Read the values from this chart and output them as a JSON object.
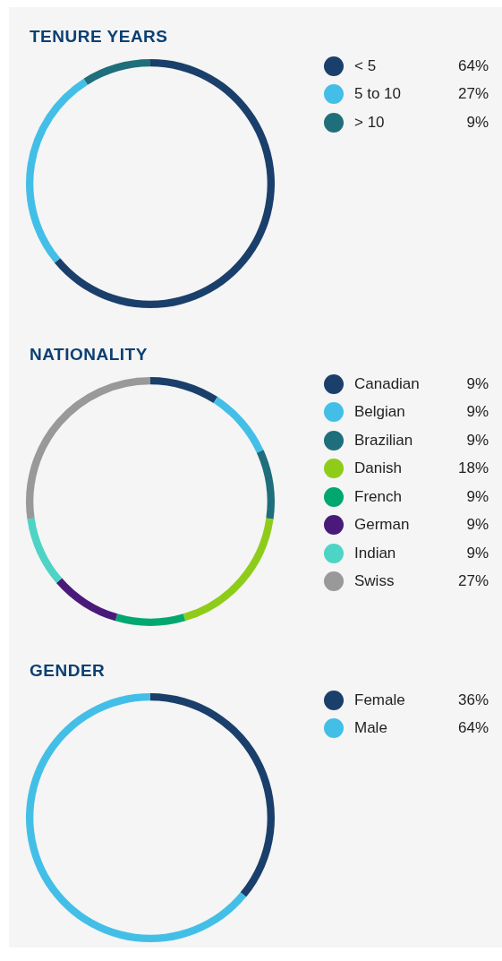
{
  "chart_data": [
    {
      "type": "donut",
      "title": "TENURE YEARS",
      "categories": [
        "< 5",
        "5 to 10",
        "> 10"
      ],
      "values": [
        64,
        27,
        9
      ],
      "value_labels": [
        "64%",
        "27%",
        "9%"
      ],
      "colors": [
        "#1b3f6b",
        "#43bfe7",
        "#1f6e7b"
      ],
      "legend": "right"
    },
    {
      "type": "donut",
      "title": "NATIONALITY",
      "categories": [
        "Canadian",
        "Belgian",
        "Brazilian",
        "Danish",
        "French",
        "German",
        "Indian",
        "Swiss"
      ],
      "values": [
        9,
        9,
        9,
        18,
        9,
        9,
        9,
        27
      ],
      "value_labels": [
        "9%",
        "9%",
        "9%",
        "18%",
        "9%",
        "9%",
        "9%",
        "27%"
      ],
      "colors": [
        "#1b3f6b",
        "#43bfe7",
        "#1f6e7b",
        "#8fcc1a",
        "#00a870",
        "#4a1a7a",
        "#4dd4c4",
        "#999999"
      ],
      "legend": "right"
    },
    {
      "type": "donut",
      "title": "GENDER",
      "categories": [
        "Female",
        "Male"
      ],
      "values": [
        36,
        64
      ],
      "value_labels": [
        "36%",
        "64%"
      ],
      "colors": [
        "#1b3f6b",
        "#43bfe7"
      ],
      "legend": "right"
    }
  ]
}
